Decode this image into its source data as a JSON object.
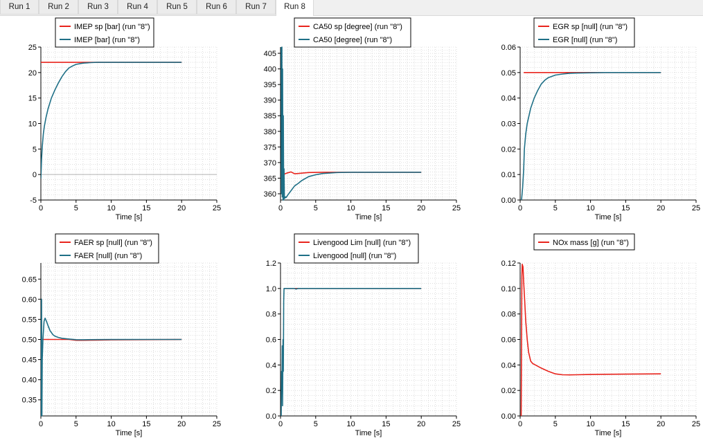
{
  "tabs": [
    {
      "label": "Run 1",
      "active": false
    },
    {
      "label": "Run 2",
      "active": false
    },
    {
      "label": "Run 3",
      "active": false
    },
    {
      "label": "Run 4",
      "active": false
    },
    {
      "label": "Run 5",
      "active": false
    },
    {
      "label": "Run 6",
      "active": false
    },
    {
      "label": "Run 7",
      "active": false
    },
    {
      "label": "Run 8",
      "active": true
    }
  ],
  "colors": {
    "red": "#e8231c",
    "teal": "#1e6f86",
    "grid": "#c8c8c8"
  },
  "chart_data": [
    {
      "type": "line",
      "xlabel": "Time [s]",
      "xlim": [
        0,
        25
      ],
      "xticks": [
        0,
        5,
        10,
        15,
        20,
        25
      ],
      "ylim": [
        -5,
        25
      ],
      "yticks": [
        -5,
        0,
        5,
        10,
        15,
        20,
        25
      ],
      "ytick_labels": [
        "-5",
        "0",
        "5",
        "10",
        "15",
        "20",
        "25"
      ],
      "zero_line": true,
      "grid": true,
      "legend_position": "top",
      "series": [
        {
          "name": "IMEP sp [bar]  (run \"8\")",
          "color": "red",
          "x": [
            0,
            20
          ],
          "y": [
            22,
            22
          ]
        },
        {
          "name": "IMEP [bar]  (run \"8\")",
          "color": "teal",
          "x": [
            0,
            0.05,
            0.1,
            0.2,
            0.35,
            0.5,
            0.75,
            1.0,
            1.5,
            2.0,
            2.5,
            3.0,
            3.5,
            4.0,
            4.5,
            5.0,
            6.0,
            7.0,
            8.0,
            10.0,
            12.0,
            15.0,
            20.0
          ],
          "y": [
            -0.8,
            1.0,
            3.0,
            5.5,
            8.0,
            9.5,
            11.3,
            12.8,
            15.0,
            16.6,
            18.0,
            19.2,
            20.2,
            20.9,
            21.3,
            21.6,
            21.85,
            21.95,
            22.0,
            22.0,
            22.0,
            22.0,
            22.0
          ]
        }
      ]
    },
    {
      "type": "line",
      "xlabel": "Time [s]",
      "xlim": [
        0,
        25
      ],
      "xticks": [
        0,
        5,
        10,
        15,
        20,
        25
      ],
      "ylim": [
        358,
        407
      ],
      "yticks": [
        360,
        365,
        370,
        375,
        380,
        385,
        390,
        395,
        400,
        405
      ],
      "ytick_labels": [
        "360",
        "365",
        "370",
        "375",
        "380",
        "385",
        "390",
        "395",
        "400",
        "405"
      ],
      "zero_line": false,
      "grid": true,
      "legend_position": "top",
      "series": [
        {
          "name": "CA50 sp [degree]   (run \"8\")",
          "color": "red",
          "x": [
            0.2,
            0.5,
            1.0,
            1.5,
            2.0,
            2.5,
            3.0,
            4.0,
            6.0,
            8.0,
            10.0,
            15.0,
            20.0
          ],
          "y": [
            366.2,
            366.3,
            366.7,
            367.0,
            366.4,
            366.5,
            366.6,
            366.8,
            366.9,
            366.9,
            366.9,
            366.9,
            366.9
          ]
        },
        {
          "name": "CA50 [degree]   (run \"8\")",
          "color": "teal",
          "x": [
            0.1,
            0.15,
            0.2,
            0.25,
            0.3,
            0.35,
            0.4,
            0.45,
            0.5,
            0.55,
            0.6,
            0.7,
            0.8,
            1.0,
            1.5,
            2.0,
            2.5,
            3.0,
            4.0,
            5.0,
            6.0,
            8.0,
            10.0,
            15.0,
            20.0
          ],
          "y": [
            407,
            360,
            407,
            359,
            400,
            358,
            385,
            358,
            368,
            359,
            358.5,
            359,
            358.8,
            359.5,
            361.0,
            362.5,
            363.3,
            364.2,
            365.5,
            366.1,
            366.5,
            366.8,
            366.9,
            366.9,
            366.9
          ]
        }
      ]
    },
    {
      "type": "line",
      "xlabel": "Time [s]",
      "xlim": [
        0,
        25
      ],
      "xticks": [
        0,
        5,
        10,
        15,
        20,
        25
      ],
      "ylim": [
        0,
        0.06
      ],
      "yticks": [
        0,
        0.01,
        0.02,
        0.03,
        0.04,
        0.05,
        0.06
      ],
      "ytick_labels": [
        "0.00",
        "0.01",
        "0.02",
        "0.03",
        "0.04",
        "0.05",
        "0.06"
      ],
      "zero_line": false,
      "grid": true,
      "legend_position": "top",
      "series": [
        {
          "name": "EGR sp [null]  (run \"8\")",
          "color": "red",
          "x": [
            0.5,
            20
          ],
          "y": [
            0.05,
            0.05
          ]
        },
        {
          "name": "EGR [null]  (run \"8\")",
          "color": "teal",
          "x": [
            0.2,
            0.35,
            0.5,
            0.6,
            0.8,
            1.0,
            1.5,
            2.0,
            2.5,
            3.0,
            3.5,
            4.0,
            5.0,
            6.0,
            7.0,
            8.0,
            10.0,
            12.0,
            15.0,
            20.0
          ],
          "y": [
            0.0,
            0.005,
            0.012,
            0.02,
            0.026,
            0.03,
            0.036,
            0.04,
            0.043,
            0.0455,
            0.047,
            0.048,
            0.049,
            0.0494,
            0.0497,
            0.0498,
            0.0499,
            0.05,
            0.05,
            0.05
          ]
        }
      ]
    },
    {
      "type": "line",
      "xlabel": "Time [s]",
      "xlim": [
        0,
        25
      ],
      "xticks": [
        0,
        5,
        10,
        15,
        20,
        25
      ],
      "ylim": [
        0.31,
        0.69
      ],
      "yticks": [
        0.35,
        0.4,
        0.45,
        0.5,
        0.55,
        0.6,
        0.65
      ],
      "ytick_labels": [
        "0.35",
        "0.40",
        "0.45",
        "0.50",
        "0.55",
        "0.60",
        "0.65"
      ],
      "zero_line": false,
      "grid": true,
      "legend_position": "top",
      "series": [
        {
          "name": "FAER sp [null]  (run \"8\")",
          "color": "red",
          "x": [
            0,
            4,
            5,
            6,
            8,
            10,
            20
          ],
          "y": [
            0.5,
            0.5,
            0.498,
            0.498,
            0.4985,
            0.499,
            0.5
          ]
        },
        {
          "name": "FAER [null]  (run \"8\")",
          "color": "teal",
          "x": [
            0.05,
            0.1,
            0.15,
            0.2,
            0.3,
            0.45,
            0.6,
            0.8,
            1.0,
            1.3,
            1.7,
            2.0,
            2.5,
            3.0,
            4.0,
            5.0,
            6.0,
            8.0,
            10.0,
            15.0,
            20.0
          ],
          "y": [
            0.31,
            0.6,
            0.31,
            0.45,
            0.5,
            0.545,
            0.553,
            0.545,
            0.535,
            0.522,
            0.512,
            0.508,
            0.505,
            0.503,
            0.501,
            0.4995,
            0.4993,
            0.4996,
            0.4998,
            0.5,
            0.5
          ]
        }
      ]
    },
    {
      "type": "line",
      "xlabel": "Time [s]",
      "xlim": [
        0,
        25
      ],
      "xticks": [
        0,
        5,
        10,
        15,
        20,
        25
      ],
      "ylim": [
        0,
        1.2
      ],
      "yticks": [
        0,
        0.2,
        0.4,
        0.6,
        0.8,
        1.0,
        1.2
      ],
      "ytick_labels": [
        "0.0",
        "0.2",
        "0.4",
        "0.6",
        "0.8",
        "1.0",
        "1.2"
      ],
      "zero_line": false,
      "grid": true,
      "legend_position": "top",
      "series": [
        {
          "name": "Livengood Lim [null]   (run \"8\")",
          "color": "red",
          "x": [
            0.5,
            20
          ],
          "y": [
            1.0,
            1.0
          ]
        },
        {
          "name": "Livengood [null]   (run \"8\")",
          "color": "teal",
          "x": [
            0.1,
            0.15,
            0.2,
            0.25,
            0.3,
            0.35,
            0.4,
            0.45,
            0.5,
            0.6,
            0.8,
            1.0,
            2.0,
            2.2,
            2.5,
            3.0,
            5.0,
            10.0,
            15.0,
            20.0
          ],
          "y": [
            0.0,
            0.35,
            0.2,
            0.55,
            0.08,
            0.6,
            0.35,
            0.9,
            1.0,
            1.0,
            1.0,
            1.0,
            1.0,
            0.995,
            1.0,
            1.0,
            1.0,
            1.0,
            1.0,
            1.0
          ]
        }
      ]
    },
    {
      "type": "line",
      "xlabel": "Time [s]",
      "xlim": [
        0,
        25
      ],
      "xticks": [
        0,
        5,
        10,
        15,
        20,
        25
      ],
      "ylim": [
        0,
        0.12
      ],
      "yticks": [
        0,
        0.02,
        0.04,
        0.06,
        0.08,
        0.1,
        0.12
      ],
      "ytick_labels": [
        "0.00",
        "0.02",
        "0.04",
        "0.06",
        "0.08",
        "0.10",
        "0.12"
      ],
      "zero_line": false,
      "grid": true,
      "legend_position": "top",
      "series": [
        {
          "name": "NOx mass [g]   (run \"8\")",
          "color": "red",
          "x": [
            0.15,
            0.25,
            0.3,
            0.4,
            0.5,
            0.65,
            0.8,
            1.0,
            1.2,
            1.5,
            1.8,
            2.0,
            2.5,
            3.0,
            4.0,
            5.0,
            6.0,
            7.0,
            8.0,
            10.0,
            12.0,
            15.0,
            20.0
          ],
          "y": [
            0.0,
            0.11,
            0.119,
            0.117,
            0.105,
            0.09,
            0.074,
            0.06,
            0.05,
            0.043,
            0.041,
            0.0405,
            0.039,
            0.0375,
            0.035,
            0.033,
            0.0323,
            0.0322,
            0.0323,
            0.0325,
            0.0327,
            0.0328,
            0.033
          ]
        }
      ]
    }
  ]
}
